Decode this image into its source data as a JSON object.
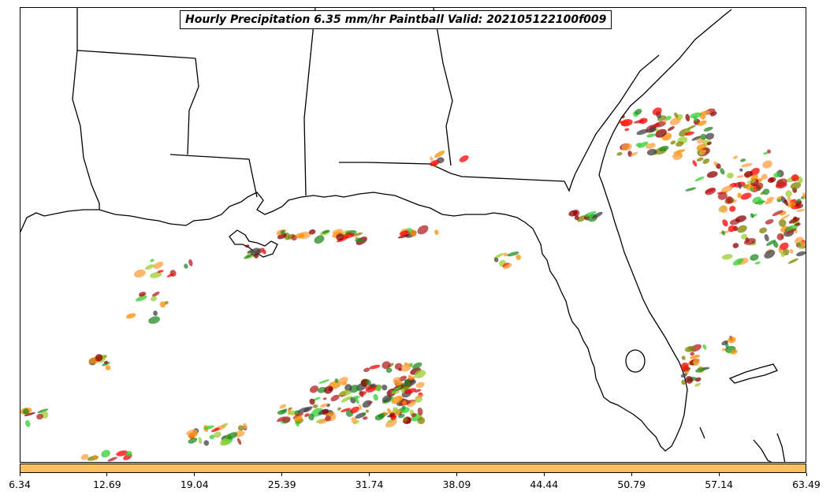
{
  "title": "Hourly Precipitation 6.35 mm/hr Paintball Valid: 202105122100f009",
  "colorbar": {
    "color": "#fcc15e",
    "ticks": [
      "6.34",
      "12.69",
      "19.04",
      "25.39",
      "31.74",
      "38.09",
      "44.44",
      "50.79",
      "57.14",
      "63.49"
    ]
  },
  "colors": {
    "coast": "#000000",
    "member_colors": [
      "#8b0000",
      "#ff8c00",
      "#ff0000",
      "#228b22",
      "#32cd32",
      "#808000",
      "#ffa040",
      "#404040",
      "#b22222",
      "#9acd32"
    ]
  }
}
